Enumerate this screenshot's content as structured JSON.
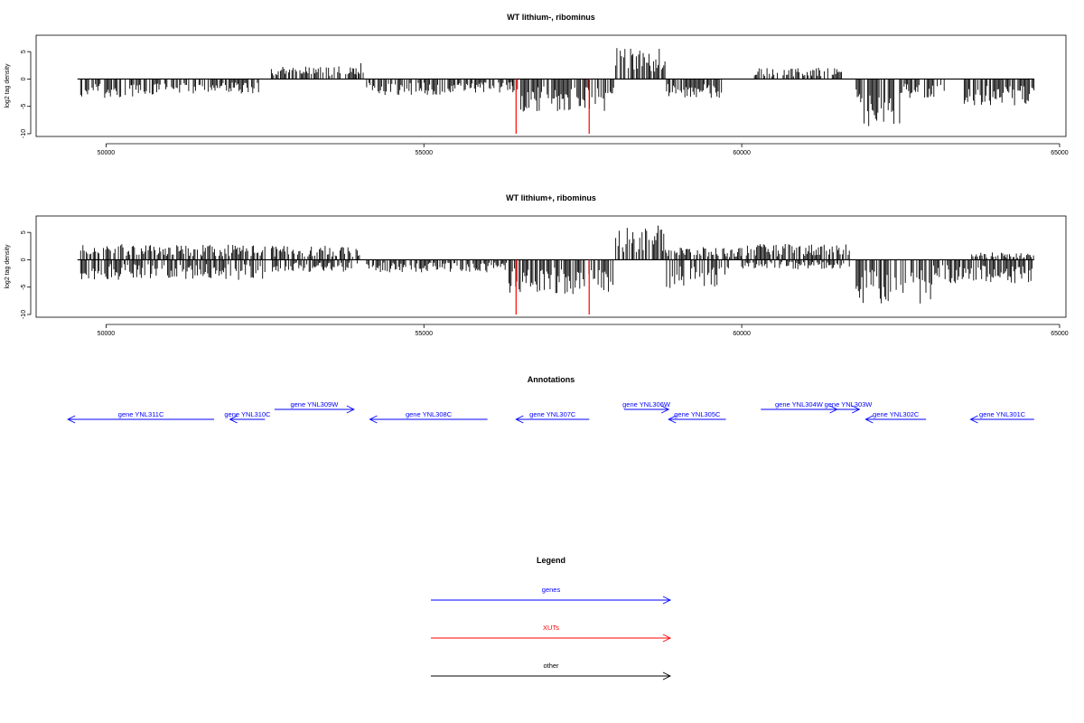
{
  "chart_data": [
    {
      "type": "bar",
      "title": "WT lithium-, ribominus",
      "ylabel": "log2 tag density",
      "xlim": [
        48900,
        65100
      ],
      "ylim": [
        -10.5,
        8
      ],
      "x_ticks": [
        50000,
        55000,
        60000,
        65000
      ],
      "y_ticks": [
        -10,
        -5,
        0,
        5
      ],
      "baseline": [
        49550,
        64600
      ],
      "markers": [
        {
          "x": 56450,
          "y": -10,
          "color": "#ff0000"
        },
        {
          "x": 57600,
          "y": -10,
          "color": "#ff0000"
        }
      ],
      "profile": [
        {
          "x0": 49600,
          "x1": 50400,
          "v": -3.0,
          "sign": -1
        },
        {
          "x0": 50400,
          "x1": 51300,
          "v": -2.8,
          "sign": -1
        },
        {
          "x0": 51300,
          "x1": 52400,
          "v": -2.5,
          "sign": -1
        },
        {
          "x0": 52600,
          "x1": 54000,
          "v": 2.0,
          "sign": 1
        },
        {
          "x0": 53900,
          "x1": 54050,
          "v": 3.0,
          "sign": 1
        },
        {
          "x0": 54100,
          "x1": 55400,
          "v": -2.6,
          "sign": -1
        },
        {
          "x0": 55400,
          "x1": 56400,
          "v": -2.2,
          "sign": -1
        },
        {
          "x0": 56400,
          "x1": 58000,
          "v": -5.2,
          "sign": -1
        },
        {
          "x0": 58000,
          "x1": 58800,
          "v": 5.0,
          "sign": 1
        },
        {
          "x0": 58800,
          "x1": 59700,
          "v": -3.0,
          "sign": -1
        },
        {
          "x0": 60200,
          "x1": 61600,
          "v": 1.8,
          "sign": 1
        },
        {
          "x0": 61800,
          "x1": 62500,
          "v": -7.5,
          "sign": -1
        },
        {
          "x0": 62500,
          "x1": 63200,
          "v": -3.0,
          "sign": -1
        },
        {
          "x0": 63500,
          "x1": 64600,
          "v": -4.2,
          "sign": -1
        }
      ]
    },
    {
      "type": "bar",
      "title": "WT lithium+, ribominus",
      "ylabel": "log2 tag density",
      "xlim": [
        48900,
        65100
      ],
      "ylim": [
        -10.5,
        8
      ],
      "x_ticks": [
        50000,
        55000,
        60000,
        65000
      ],
      "y_ticks": [
        -10,
        -5,
        0,
        5
      ],
      "baseline": [
        49550,
        64600
      ],
      "markers": [
        {
          "x": 56450,
          "y": -10,
          "color": "#ff0000"
        },
        {
          "x": 57600,
          "y": -10,
          "color": "#ff0000"
        }
      ],
      "profile": [
        {
          "x0": 49600,
          "x1": 52500,
          "v": 2.5,
          "sign": 1
        },
        {
          "x0": 49600,
          "x1": 52500,
          "v": -3.2,
          "sign": -1
        },
        {
          "x0": 52600,
          "x1": 54000,
          "v": 2.2,
          "sign": 1
        },
        {
          "x0": 52600,
          "x1": 54000,
          "v": -2.0,
          "sign": -1
        },
        {
          "x0": 54100,
          "x1": 56300,
          "v": -2.0,
          "sign": -1
        },
        {
          "x0": 56300,
          "x1": 58000,
          "v": -5.5,
          "sign": -1
        },
        {
          "x0": 58000,
          "x1": 58800,
          "v": 5.5,
          "sign": 1
        },
        {
          "x0": 58800,
          "x1": 59800,
          "v": -4.5,
          "sign": -1
        },
        {
          "x0": 58800,
          "x1": 60000,
          "v": 2.0,
          "sign": 1
        },
        {
          "x0": 60000,
          "x1": 61700,
          "v": 2.5,
          "sign": 1
        },
        {
          "x0": 60000,
          "x1": 61700,
          "v": -1.5,
          "sign": -1
        },
        {
          "x0": 61800,
          "x1": 63000,
          "v": -7.0,
          "sign": -1
        },
        {
          "x0": 63000,
          "x1": 64600,
          "v": -3.8,
          "sign": -1
        },
        {
          "x0": 63600,
          "x1": 64600,
          "v": 1.2,
          "sign": 1
        }
      ]
    }
  ],
  "annotations": {
    "title": "Annotations",
    "color": "#0000ff",
    "genes": [
      {
        "label": "gene YNL311C",
        "start": 51700,
        "end": 49400,
        "row": 1
      },
      {
        "label": "gene YNL310C",
        "start": 52500,
        "end": 51950,
        "row": 1
      },
      {
        "label": "gene YNL309W",
        "start": 52650,
        "end": 53900,
        "row": 0
      },
      {
        "label": "gene YNL308C",
        "start": 56000,
        "end": 54150,
        "row": 1
      },
      {
        "label": "gene YNL307C",
        "start": 57600,
        "end": 56450,
        "row": 1
      },
      {
        "label": "gene YNL306W",
        "start": 58150,
        "end": 58850,
        "row": 0
      },
      {
        "label": "gene YNL305C",
        "start": 59750,
        "end": 58850,
        "row": 1
      },
      {
        "label": "gene YNL304W",
        "start": 60300,
        "end": 61500,
        "row": 0
      },
      {
        "label": "gene YNL303W",
        "start": 61500,
        "end": 61850,
        "row": 0
      },
      {
        "label": "gene YNL302C",
        "start": 62900,
        "end": 61950,
        "row": 1
      },
      {
        "label": "gene YNL301C",
        "start": 64600,
        "end": 63600,
        "row": 1
      }
    ]
  },
  "legend": {
    "title": "Legend",
    "items": [
      {
        "label": "genes",
        "color": "#0000ff"
      },
      {
        "label": "XUTs",
        "color": "#ff0000"
      },
      {
        "label": "other",
        "color": "#000000"
      }
    ]
  }
}
